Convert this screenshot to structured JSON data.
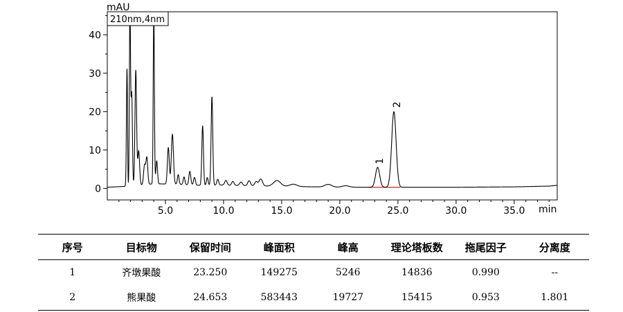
{
  "chart_data": {
    "type": "line",
    "ylabel": "mAU",
    "xlabel": "min",
    "detector_label": "210nm,4nm",
    "xlim": [
      0,
      38.7
    ],
    "ylim": [
      -3,
      46
    ],
    "x_ticks": [
      5.0,
      10.0,
      15.0,
      20.0,
      25.0,
      30.0,
      35.0
    ],
    "x_tick_labels": [
      "5.0",
      "10.0",
      "15.0",
      "20.0",
      "25.0",
      "30.0",
      "35.0"
    ],
    "y_ticks": [
      0,
      10,
      20,
      30,
      40
    ],
    "y_tick_labels": [
      "0",
      "10",
      "20",
      "30",
      "40"
    ],
    "baseline_points": [
      [
        0,
        0.3
      ],
      [
        2,
        0.6
      ],
      [
        4,
        1.2
      ],
      [
        6,
        1.1
      ],
      [
        8,
        0.8
      ],
      [
        10,
        0.9
      ],
      [
        12,
        0.7
      ],
      [
        14,
        0.6
      ],
      [
        16,
        0.5
      ],
      [
        18,
        0.4
      ],
      [
        20,
        0.3
      ],
      [
        22,
        0.3
      ],
      [
        25,
        0.3
      ],
      [
        30,
        0.3
      ],
      [
        35,
        0.4
      ],
      [
        38,
        0.6
      ],
      [
        38.7,
        0.8
      ]
    ],
    "baseline_dip": {
      "center": 1.75,
      "width": 0.05,
      "depth": -6
    },
    "peaks": [
      {
        "x": 1.7,
        "h": 34,
        "w": 0.05
      },
      {
        "x": 1.95,
        "h": 46,
        "w": 0.05
      },
      {
        "x": 2.1,
        "h": 24,
        "w": 0.06
      },
      {
        "x": 2.45,
        "h": 30,
        "w": 0.07
      },
      {
        "x": 2.7,
        "h": 9,
        "w": 0.08
      },
      {
        "x": 3.2,
        "h": 5,
        "w": 0.08
      },
      {
        "x": 3.4,
        "h": 7,
        "w": 0.08
      },
      {
        "x": 4.0,
        "h": 45,
        "w": 0.05
      },
      {
        "x": 4.25,
        "h": 6,
        "w": 0.07
      },
      {
        "x": 5.25,
        "h": 9.5,
        "w": 0.08
      },
      {
        "x": 5.6,
        "h": 13,
        "w": 0.09
      },
      {
        "x": 6.1,
        "h": 2.5,
        "w": 0.07
      },
      {
        "x": 6.6,
        "h": 2,
        "w": 0.07
      },
      {
        "x": 7.1,
        "h": 3.5,
        "w": 0.08
      },
      {
        "x": 7.5,
        "h": 2,
        "w": 0.08
      },
      {
        "x": 8.2,
        "h": 15.5,
        "w": 0.07
      },
      {
        "x": 8.6,
        "h": 2,
        "w": 0.07
      },
      {
        "x": 9.0,
        "h": 23,
        "w": 0.07
      },
      {
        "x": 9.5,
        "h": 1.5,
        "w": 0.08
      },
      {
        "x": 10.2,
        "h": 1.2,
        "w": 0.1
      },
      {
        "x": 10.8,
        "h": 1.0,
        "w": 0.1
      },
      {
        "x": 11.5,
        "h": 0.9,
        "w": 0.12
      },
      {
        "x": 12.2,
        "h": 1.3,
        "w": 0.12
      },
      {
        "x": 12.8,
        "h": 1.1,
        "w": 0.12
      },
      {
        "x": 13.2,
        "h": 1.8,
        "w": 0.15
      },
      {
        "x": 14.6,
        "h": 1.5,
        "w": 0.3
      },
      {
        "x": 16.0,
        "h": 0.6,
        "w": 0.3
      },
      {
        "x": 19.0,
        "h": 0.7,
        "w": 0.3
      },
      {
        "x": 20.5,
        "h": 0.4,
        "w": 0.3
      },
      {
        "x": 23.25,
        "h": 5.2,
        "w": 0.18
      },
      {
        "x": 24.65,
        "h": 19.7,
        "w": 0.19
      }
    ],
    "peak_labels": [
      {
        "x": 23.7,
        "y": 6.3,
        "label": "1"
      },
      {
        "x": 25.2,
        "y": 21.0,
        "label": "2"
      }
    ],
    "integration_line": {
      "x1": 22.5,
      "x2": 25.2,
      "y": 0.3,
      "color": "#e03030"
    },
    "line_color": "#000000"
  },
  "table": {
    "headers": [
      "序号",
      "目标物",
      "保留时间",
      "峰面积",
      "峰高",
      "理论塔板数",
      "拖尾因子",
      "分离度"
    ],
    "rows": [
      [
        "1",
        "齐墩果酸",
        "23.250",
        "149275",
        "5246",
        "14836",
        "0.990",
        "--"
      ],
      [
        "2",
        "熊果酸",
        "24.653",
        "583443",
        "19727",
        "15415",
        "0.953",
        "1.801"
      ]
    ]
  }
}
